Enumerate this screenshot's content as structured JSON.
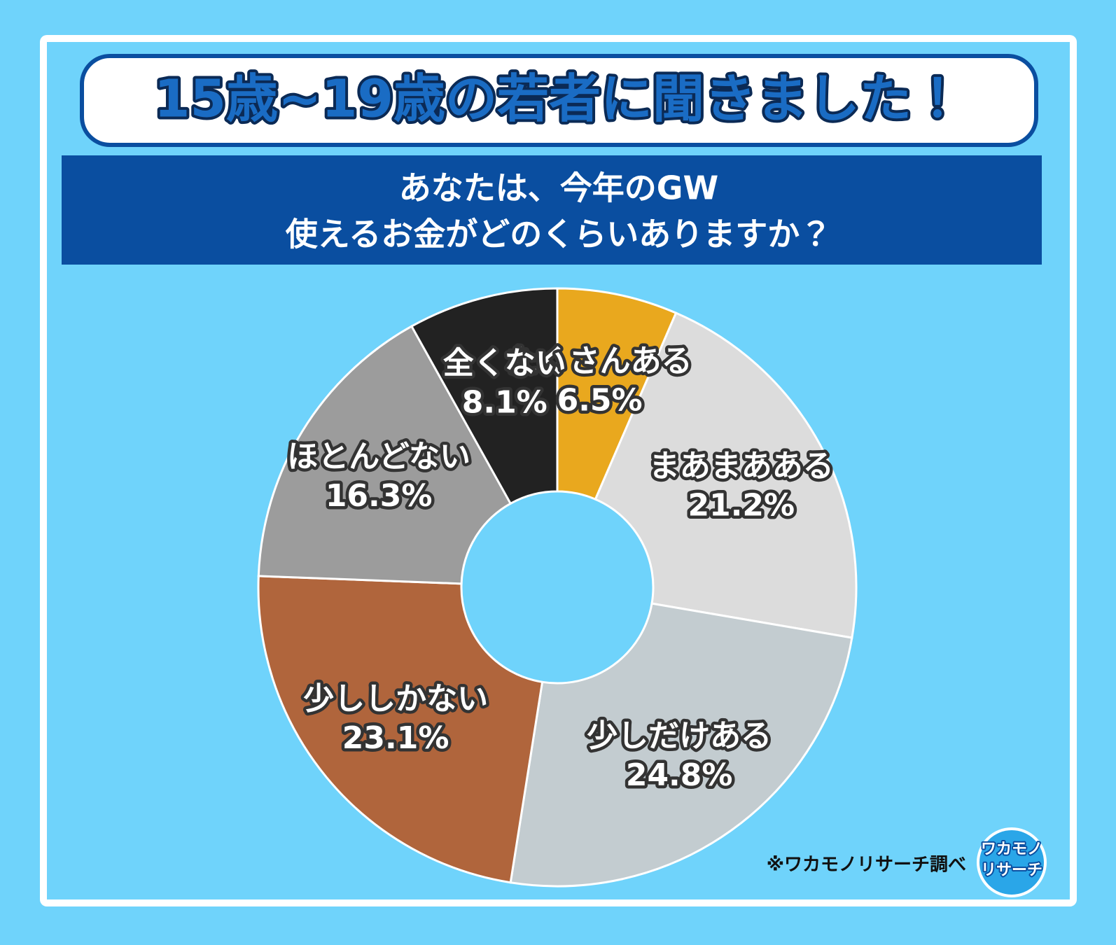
{
  "header": {
    "title": "15歳~19歳の若者に聞きました！",
    "question": [
      "あなたは、今年のGW",
      "使えるお金がどのくらいありますか？"
    ]
  },
  "chart_data": {
    "type": "pie",
    "donut": true,
    "categories": [
      "たくさんある",
      "まあまあある",
      "少しだけある",
      "少ししかない",
      "ほとんどない",
      "全くない"
    ],
    "values": [
      6.5,
      21.2,
      24.8,
      23.1,
      16.3,
      8.1
    ],
    "value_labels": [
      "6.5%",
      "21.2%",
      "24.8%",
      "23.1%",
      "16.3%",
      "8.1%"
    ],
    "colors": [
      "#e9a81e",
      "#dcdcdc",
      "#c3ccd0",
      "#b0653c",
      "#9c9c9c",
      "#222222"
    ]
  },
  "footer": {
    "source": "※ワカモノリサーチ調べ",
    "logo": [
      "ワカモノ",
      "リサーチ"
    ]
  }
}
